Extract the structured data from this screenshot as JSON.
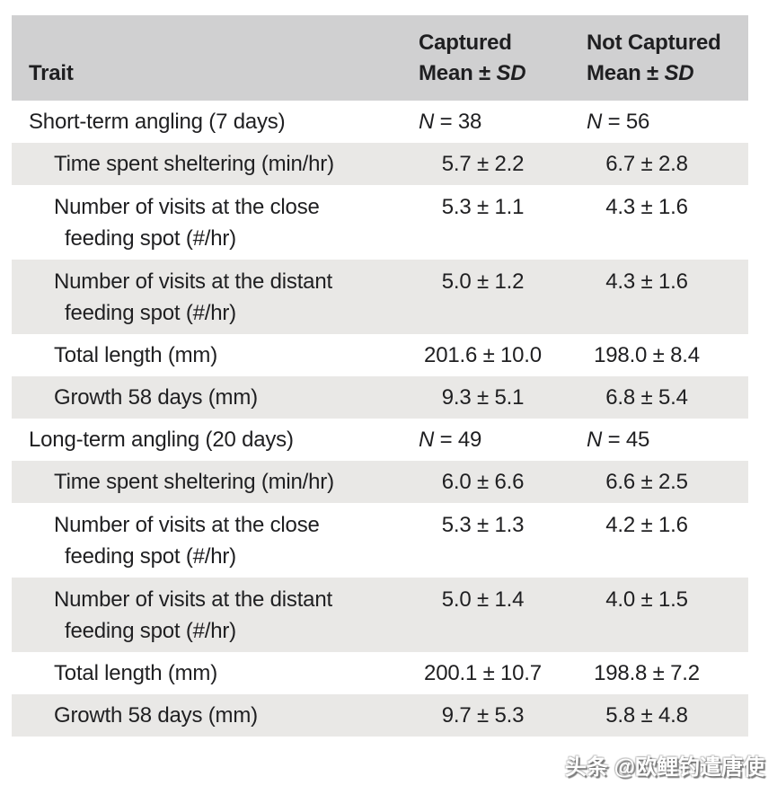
{
  "page": {
    "watermark": "头条 @欧鲤钓遣唐使"
  },
  "table": {
    "header": {
      "trait": "Trait",
      "captured_line1": "Captured",
      "not_captured_line1": "Not Captured",
      "mean_label": "Mean ± ",
      "sd_label": "SD"
    },
    "n_label": "N",
    "rows": [
      {
        "type": "section",
        "shaded": false,
        "label": "Short-term angling (7 days)",
        "captured_n": "38",
        "not_captured_n": "56"
      },
      {
        "type": "sub",
        "shaded": true,
        "label": "Time spent sheltering (min/hr)",
        "captured": "5.7 ± 2.2",
        "not_captured": "6.7 ± 2.8"
      },
      {
        "type": "sub",
        "shaded": false,
        "label": "Number of visits at the close",
        "label2": "feeding spot (#/hr)",
        "captured": "5.3 ± 1.1",
        "not_captured": "4.3 ± 1.6"
      },
      {
        "type": "sub",
        "shaded": true,
        "label": "Number of visits at the distant",
        "label2": "feeding spot (#/hr)",
        "captured": "5.0 ± 1.2",
        "not_captured": "4.3 ± 1.6"
      },
      {
        "type": "sub",
        "shaded": false,
        "label": "Total length (mm)",
        "captured": "201.6 ± 10.0",
        "not_captured": "198.0 ± 8.4"
      },
      {
        "type": "sub",
        "shaded": true,
        "label": "Growth 58 days (mm)",
        "captured": "9.3 ± 5.1",
        "not_captured": "6.8 ± 5.4"
      },
      {
        "type": "section",
        "shaded": false,
        "label": "Long-term angling (20 days)",
        "captured_n": "49",
        "not_captured_n": "45"
      },
      {
        "type": "sub",
        "shaded": true,
        "label": "Time spent sheltering (min/hr)",
        "captured": "6.0 ± 6.6",
        "not_captured": "6.6 ± 2.5"
      },
      {
        "type": "sub",
        "shaded": false,
        "label": "Number of visits at the close",
        "label2": "feeding spot (#/hr)",
        "captured": "5.3 ± 1.3",
        "not_captured": "4.2 ± 1.6"
      },
      {
        "type": "sub",
        "shaded": true,
        "label": "Number of visits at the distant",
        "label2": "feeding spot (#/hr)",
        "captured": "5.0 ± 1.4",
        "not_captured": "4.0 ± 1.5"
      },
      {
        "type": "sub",
        "shaded": false,
        "label": "Total length (mm)",
        "captured": "200.1 ± 10.7",
        "not_captured": "198.8 ± 7.2"
      },
      {
        "type": "sub",
        "shaded": true,
        "label": "Growth 58 days (mm)",
        "captured": "9.7 ± 5.3",
        "not_captured": "5.8 ± 4.8"
      }
    ],
    "colors": {
      "header_bg": "#d0d0d1",
      "stripe_bg": "#e9e8e6",
      "text": "#1f1f21"
    }
  }
}
